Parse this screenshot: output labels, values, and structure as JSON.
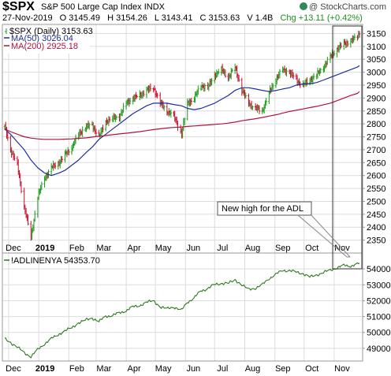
{
  "header": {
    "symbol": "$SPX",
    "name": "S&P 500 Large Cap Index",
    "exchange": "INDX",
    "credit": "@ StockCharts.com",
    "date": "27-Nov-2019",
    "open": "O 3145.49",
    "high": "H 3154.26",
    "low": "L 3143.41",
    "close": "C 3153.63",
    "volume": "V 1.4B",
    "change": "Chg +13.11 (+0.42%)"
  },
  "legend": {
    "price": "$SPX (Daily) 3153.63",
    "ma50": "MA(50) 3026.04",
    "ma200": "MA(200) 2925.18",
    "adl": "!ADLINENYA 54353.70"
  },
  "annotation": "New high for the ADL",
  "colors": {
    "up": "#1a9a1a",
    "down": "#c8102e",
    "ma50": "#1f2f9a",
    "ma200": "#b3123b",
    "adl": "#2c7a1e",
    "grid": "#dcdcdc"
  },
  "chart_data": [
    {
      "type": "line",
      "title": "$SPX S&P 500 Large Cap Index INDX",
      "y_scale": "linear",
      "ylim": [
        2300,
        3185
      ],
      "y_ticks": [
        2350,
        2400,
        2450,
        2500,
        2550,
        2600,
        2650,
        2700,
        2750,
        2800,
        2850,
        2900,
        2950,
        3000,
        3050,
        3100,
        3150
      ],
      "x_ticks": [
        "Dec",
        "2019",
        "Feb",
        "Mar",
        "Apr",
        "May",
        "Jun",
        "Jul",
        "Aug",
        "Sep",
        "Oct",
        "Nov"
      ],
      "grid": true,
      "legend_position": "top-left",
      "x": [
        "2018-11-27",
        "2018-12-03",
        "2018-12-10",
        "2018-12-17",
        "2018-12-24",
        "2018-12-31",
        "2019-01-07",
        "2019-01-14",
        "2019-01-22",
        "2019-01-28",
        "2019-02-04",
        "2019-02-11",
        "2019-02-19",
        "2019-02-25",
        "2019-03-04",
        "2019-03-11",
        "2019-03-18",
        "2019-03-25",
        "2019-04-01",
        "2019-04-08",
        "2019-04-15",
        "2019-04-22",
        "2019-04-29",
        "2019-05-06",
        "2019-05-13",
        "2019-05-20",
        "2019-05-28",
        "2019-06-03",
        "2019-06-10",
        "2019-06-17",
        "2019-06-24",
        "2019-07-01",
        "2019-07-08",
        "2019-07-15",
        "2019-07-22",
        "2019-07-29",
        "2019-08-05",
        "2019-08-12",
        "2019-08-19",
        "2019-08-26",
        "2019-09-03",
        "2019-09-09",
        "2019-09-16",
        "2019-09-23",
        "2019-09-30",
        "2019-10-07",
        "2019-10-14",
        "2019-10-21",
        "2019-10-28",
        "2019-11-04",
        "2019-11-11",
        "2019-11-18",
        "2019-11-25",
        "2019-11-27"
      ],
      "series": [
        {
          "name": "$SPX (Daily) 3153.63",
          "values": [
            2790,
            2700,
            2640,
            2480,
            2360,
            2520,
            2590,
            2630,
            2650,
            2680,
            2710,
            2760,
            2790,
            2795,
            2750,
            2810,
            2820,
            2830,
            2880,
            2900,
            2910,
            2930,
            2940,
            2880,
            2850,
            2830,
            2760,
            2880,
            2900,
            2950,
            2940,
            2990,
            3010,
            2980,
            3020,
            2930,
            2880,
            2860,
            2850,
            2920,
            2980,
            3010,
            3000,
            2970,
            2950,
            2970,
            2990,
            3020,
            3060,
            3090,
            3110,
            3120,
            3140,
            3153.63
          ]
        },
        {
          "name": "MA(50) 3026.04",
          "values": [
            2780,
            2760,
            2730,
            2700,
            2660,
            2630,
            2610,
            2600,
            2610,
            2620,
            2640,
            2660,
            2690,
            2710,
            2740,
            2760,
            2780,
            2800,
            2820,
            2840,
            2855,
            2870,
            2880,
            2880,
            2880,
            2875,
            2870,
            2860,
            2855,
            2860,
            2870,
            2880,
            2895,
            2910,
            2930,
            2940,
            2940,
            2935,
            2930,
            2925,
            2930,
            2935,
            2940,
            2950,
            2955,
            2955,
            2960,
            2970,
            2980,
            2990,
            3000,
            3010,
            3020,
            3026.04
          ]
        },
        {
          "name": "MA(200) 2925.18",
          "values": [
            2780,
            2770,
            2760,
            2750,
            2745,
            2742,
            2740,
            2740,
            2740,
            2741,
            2742,
            2744,
            2746,
            2749,
            2752,
            2755,
            2758,
            2761,
            2764,
            2767,
            2770,
            2774,
            2778,
            2781,
            2784,
            2786,
            2788,
            2790,
            2792,
            2794,
            2796,
            2798,
            2800,
            2803,
            2807,
            2812,
            2816,
            2820,
            2825,
            2830,
            2836,
            2842,
            2848,
            2853,
            2858,
            2863,
            2868,
            2874,
            2880,
            2890,
            2900,
            2910,
            2918,
            2925.18
          ]
        }
      ]
    },
    {
      "type": "line",
      "ylim": [
        48200,
        55000
      ],
      "y_ticks": [
        49000,
        50000,
        51000,
        52000,
        53000,
        54000
      ],
      "x_ticks": [
        "Dec",
        "2019",
        "Feb",
        "Mar",
        "Apr",
        "May",
        "Jun",
        "Jul",
        "Aug",
        "Sep",
        "Oct",
        "Nov"
      ],
      "grid": true,
      "x": [
        "2018-11-27",
        "2018-12-03",
        "2018-12-10",
        "2018-12-17",
        "2018-12-24",
        "2018-12-31",
        "2019-01-07",
        "2019-01-14",
        "2019-01-22",
        "2019-01-28",
        "2019-02-04",
        "2019-02-11",
        "2019-02-19",
        "2019-02-25",
        "2019-03-04",
        "2019-03-11",
        "2019-03-18",
        "2019-03-25",
        "2019-04-01",
        "2019-04-08",
        "2019-04-15",
        "2019-04-22",
        "2019-04-29",
        "2019-05-06",
        "2019-05-13",
        "2019-05-20",
        "2019-05-28",
        "2019-06-03",
        "2019-06-10",
        "2019-06-17",
        "2019-06-24",
        "2019-07-01",
        "2019-07-08",
        "2019-07-15",
        "2019-07-22",
        "2019-07-29",
        "2019-08-05",
        "2019-08-12",
        "2019-08-19",
        "2019-08-26",
        "2019-09-03",
        "2019-09-09",
        "2019-09-16",
        "2019-09-23",
        "2019-09-30",
        "2019-10-07",
        "2019-10-14",
        "2019-10-21",
        "2019-10-28",
        "2019-11-04",
        "2019-11-11",
        "2019-11-18",
        "2019-11-25",
        "2019-11-27"
      ],
      "series": [
        {
          "name": "!ADLINENYA 54353.70",
          "values": [
            49600,
            49350,
            49100,
            48700,
            48500,
            48900,
            49300,
            49600,
            49900,
            50100,
            50300,
            50600,
            50800,
            50900,
            50700,
            51000,
            51100,
            51200,
            51400,
            51600,
            51700,
            51900,
            52000,
            51600,
            51500,
            51600,
            51400,
            51900,
            52200,
            52600,
            52800,
            53000,
            53100,
            53100,
            53300,
            53000,
            52700,
            52800,
            53000,
            53400,
            53700,
            53900,
            53900,
            53800,
            53700,
            53500,
            53600,
            53800,
            53900,
            54100,
            54200,
            54200,
            54300,
            54353.7
          ]
        }
      ]
    }
  ]
}
